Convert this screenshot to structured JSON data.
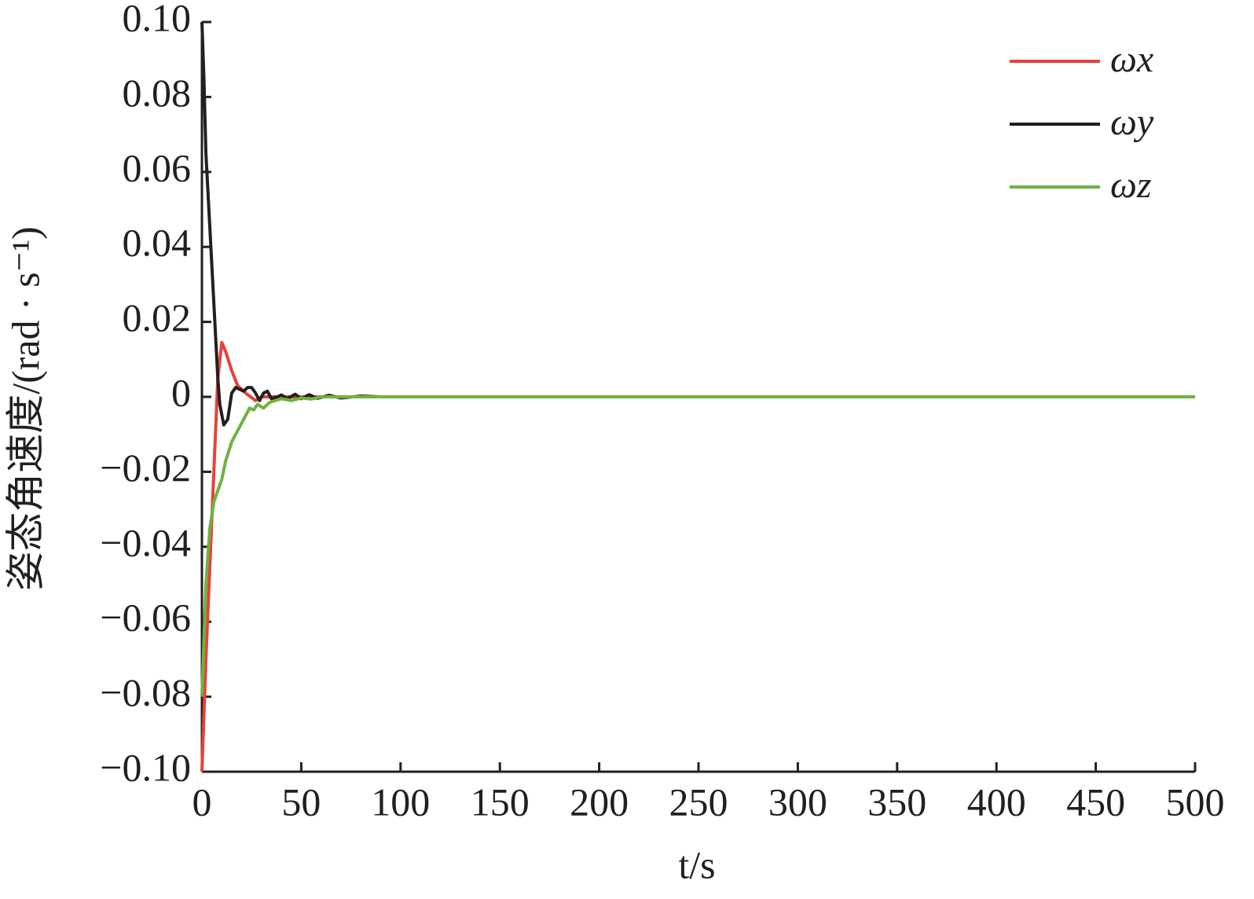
{
  "chart_data": {
    "type": "line",
    "x_label": "t/s",
    "y_label": "姿态角速度/(rad · s⁻¹)",
    "xlim": [
      0,
      500
    ],
    "xticks": [
      0,
      50,
      100,
      150,
      200,
      250,
      300,
      350,
      400,
      450,
      500
    ],
    "ylim": [
      -0.1,
      0.1
    ],
    "yticks": [
      {
        "value": -0.1,
        "label": "−0.10"
      },
      {
        "value": -0.08,
        "label": "−0.08"
      },
      {
        "value": -0.06,
        "label": "−0.06"
      },
      {
        "value": -0.04,
        "label": "−0.04"
      },
      {
        "value": -0.02,
        "label": "−0.02"
      },
      0,
      {
        "value": 0.02,
        "label": "0.02"
      },
      {
        "value": 0.04,
        "label": "0.04"
      },
      {
        "value": 0.06,
        "label": "0.06"
      },
      {
        "value": 0.08,
        "label": "0.08"
      },
      {
        "value": 0.1,
        "label": "0.10"
      }
    ],
    "grid": false,
    "legend": "upper-right",
    "series": [
      {
        "name": "ωx",
        "color": "#e8413a",
        "x": [
          0,
          2,
          4,
          6,
          8,
          10,
          12,
          15,
          18,
          22,
          27,
          30,
          40,
          500
        ],
        "values": [
          -0.1,
          -0.07,
          -0.045,
          -0.02,
          0.005,
          0.0145,
          0.012,
          0.007,
          0.003,
          0.001,
          -0.001,
          0,
          0,
          0
        ]
      },
      {
        "name": "ωy",
        "color": "#231f20",
        "x": [
          0,
          1,
          2,
          4,
          6,
          8,
          9,
          11,
          13,
          15,
          17,
          19,
          21,
          23,
          25,
          27,
          29,
          31,
          33,
          35,
          38,
          40,
          43,
          47,
          50,
          54,
          58,
          64,
          70,
          80,
          90,
          500
        ],
        "values": [
          0.1,
          0.085,
          0.065,
          0.045,
          0.025,
          0.005,
          -0.002,
          -0.0075,
          -0.006,
          0.001,
          0.0025,
          0.002,
          0.0015,
          0.0025,
          0.0025,
          0.001,
          -0.001,
          0.001,
          0.0015,
          -0.0005,
          0,
          0.0005,
          -0.0005,
          0.0007,
          -0.0005,
          0.0006,
          -0.0004,
          0.0004,
          -0.0003,
          0.0002,
          0,
          0
        ]
      },
      {
        "name": "ωz",
        "color": "#6db33f",
        "x": [
          0,
          2,
          4,
          6,
          8,
          10,
          12,
          15,
          18,
          21,
          24,
          26,
          28,
          31,
          34,
          37,
          40,
          45,
          50,
          55,
          60,
          70,
          500
        ],
        "values": [
          -0.08,
          -0.05,
          -0.035,
          -0.028,
          -0.025,
          -0.022,
          -0.017,
          -0.012,
          -0.009,
          -0.006,
          -0.003,
          -0.0035,
          -0.002,
          -0.003,
          -0.0015,
          -0.001,
          -0.0005,
          -0.001,
          -0.0003,
          -0.0006,
          0,
          0,
          0
        ]
      }
    ]
  }
}
